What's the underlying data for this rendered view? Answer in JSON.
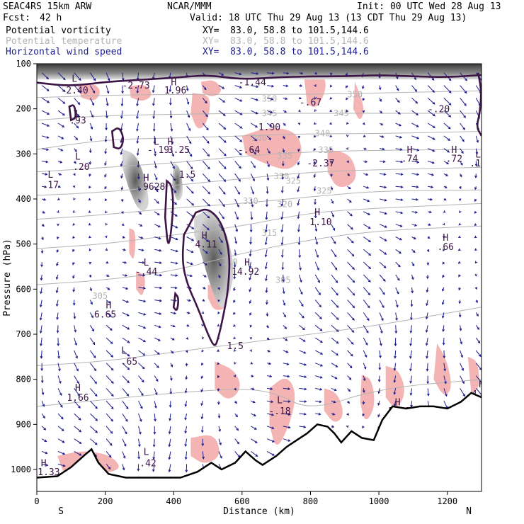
{
  "header": {
    "model": "SEAC4RS 15km ARW",
    "org": "NCAR/MMM",
    "init": "Init: 00 UTC Wed 28 Aug 13",
    "fcst_label": "Fcst:",
    "fcst_value": "42 h",
    "valid": "Valid: 18 UTC Thu 29 Aug 13 (13 CDT Thu 29 Aug 13)",
    "fields": [
      {
        "name": "Potential vorticity",
        "xy": "XY=  83.0, 58.8 to 101.5,144.6",
        "color": "#000000"
      },
      {
        "name": "Potential temperature",
        "xy": "XY=  83.0, 58.8 to 101.5,144.6",
        "color": "#b4b4b4"
      },
      {
        "name": "Horizontal wind speed",
        "xy": "XY=  83.0, 58.8 to 101.5,144.6",
        "color": "#1c1c8c"
      }
    ]
  },
  "colors": {
    "wind": "#1c1c8c",
    "pv_contour": "#3c1446",
    "theta": "#b4b4b4",
    "pink": "#f5b4b4",
    "gray_fill": "#9a9a9a",
    "terrain": "#000000"
  },
  "chart_data": {
    "type": "cross-section",
    "ylabel": "Pressure (hPa)",
    "xlabel": "Distance (km)",
    "x_ticks": [
      0,
      200,
      400,
      600,
      800,
      1000,
      1200
    ],
    "y_ticks": [
      100,
      200,
      300,
      400,
      500,
      600,
      700,
      800,
      900,
      1000
    ],
    "xlim": [
      0,
      1300
    ],
    "ylim_hpa": [
      1050,
      100
    ],
    "end_labels": {
      "left": "S",
      "right": "N"
    },
    "theta_labels": [
      {
        "x": 930,
        "p": 168,
        "t": "350"
      },
      {
        "x": 680,
        "p": 178,
        "t": "350"
      },
      {
        "x": 890,
        "p": 210,
        "t": "345"
      },
      {
        "x": 680,
        "p": 210,
        "t": "345"
      },
      {
        "x": 650,
        "p": 265,
        "t": "340"
      },
      {
        "x": 835,
        "p": 255,
        "t": "340"
      },
      {
        "x": 725,
        "p": 304,
        "t": "335"
      },
      {
        "x": 845,
        "p": 292,
        "t": "335"
      },
      {
        "x": 715,
        "p": 350,
        "t": "330"
      },
      {
        "x": 625,
        "p": 405,
        "t": "330"
      },
      {
        "x": 750,
        "p": 360,
        "t": "325"
      },
      {
        "x": 840,
        "p": 382,
        "t": "325"
      },
      {
        "x": 725,
        "p": 412,
        "t": "320"
      },
      {
        "x": 680,
        "p": 475,
        "t": "315"
      },
      {
        "x": 565,
        "p": 540,
        "t": "310"
      },
      {
        "x": 720,
        "p": 580,
        "t": "305"
      },
      {
        "x": 185,
        "p": 615,
        "t": "305"
      }
    ],
    "extrema_labels": [
      {
        "x": 110,
        "p": 132,
        "t": "L"
      },
      {
        "x": 110,
        "p": 158,
        "t": "-2.40"
      },
      {
        "x": 290,
        "p": 147,
        "t": "-2.73"
      },
      {
        "x": 400,
        "p": 140,
        "t": "H"
      },
      {
        "x": 405,
        "p": 158,
        "t": "1.96"
      },
      {
        "x": 630,
        "p": 140,
        "t": "-1.44"
      },
      {
        "x": 800,
        "p": 185,
        "t": "-.67"
      },
      {
        "x": 1175,
        "p": 200,
        "t": "-.20"
      },
      {
        "x": 120,
        "p": 210,
        "t": "L"
      },
      {
        "x": 120,
        "p": 225,
        "t": ".93"
      },
      {
        "x": 680,
        "p": 240,
        "t": "1.90"
      },
      {
        "x": 620,
        "p": 290,
        "t": "-.64"
      },
      {
        "x": 350,
        "p": 272,
        "t": "L"
      },
      {
        "x": 355,
        "p": 290,
        "t": "-.19"
      },
      {
        "x": 390,
        "p": 272,
        "t": "H"
      },
      {
        "x": 415,
        "p": 290,
        "t": "3.25"
      },
      {
        "x": 120,
        "p": 305,
        "t": "L"
      },
      {
        "x": 130,
        "p": 328,
        "t": ".20"
      },
      {
        "x": 40,
        "p": 345,
        "t": "L"
      },
      {
        "x": 40,
        "p": 368,
        "t": ".17"
      },
      {
        "x": 830,
        "p": 320,
        "t": "-2.37"
      },
      {
        "x": 1090,
        "p": 290,
        "t": "H"
      },
      {
        "x": 1090,
        "p": 310,
        "t": ".74"
      },
      {
        "x": 1220,
        "p": 290,
        "t": "H"
      },
      {
        "x": 1220,
        "p": 310,
        "t": ".72"
      },
      {
        "x": 1290,
        "p": 300,
        "t": "L"
      },
      {
        "x": 1290,
        "p": 320,
        "t": ".17"
      },
      {
        "x": 320,
        "p": 352,
        "t": "H"
      },
      {
        "x": 335,
        "p": 372,
        "t": ".9628"
      },
      {
        "x": 440,
        "p": 345,
        "t": "1.5"
      },
      {
        "x": 820,
        "p": 428,
        "t": "H"
      },
      {
        "x": 830,
        "p": 450,
        "t": "1.10"
      },
      {
        "x": 490,
        "p": 480,
        "t": "H"
      },
      {
        "x": 495,
        "p": 500,
        "t": "4.11"
      },
      {
        "x": 1195,
        "p": 485,
        "t": "H"
      },
      {
        "x": 1195,
        "p": 505,
        "t": ".66"
      },
      {
        "x": 320,
        "p": 540,
        "t": "L"
      },
      {
        "x": 320,
        "p": 560,
        "t": "-.44"
      },
      {
        "x": 615,
        "p": 540,
        "t": "H"
      },
      {
        "x": 610,
        "p": 560,
        "t": "14.92"
      },
      {
        "x": 210,
        "p": 635,
        "t": "H"
      },
      {
        "x": 200,
        "p": 655,
        "t": "6.65"
      },
      {
        "x": 580,
        "p": 725,
        "t": "1.5"
      },
      {
        "x": 255,
        "p": 735,
        "t": "L"
      },
      {
        "x": 270,
        "p": 760,
        "t": ".65"
      },
      {
        "x": 120,
        "p": 818,
        "t": "H"
      },
      {
        "x": 120,
        "p": 840,
        "t": "1.66"
      },
      {
        "x": 710,
        "p": 845,
        "t": "L"
      },
      {
        "x": 710,
        "p": 870,
        "t": "-.18"
      },
      {
        "x": 1055,
        "p": 850,
        "t": "H"
      },
      {
        "x": 1060,
        "p": 870,
        "t": "5.92"
      },
      {
        "x": 1300,
        "p": 810,
        "t": "H"
      },
      {
        "x": 1295,
        "p": 832,
        "t": "4.6"
      },
      {
        "x": 320,
        "p": 960,
        "t": "L"
      },
      {
        "x": 325,
        "p": 985,
        "t": ".42"
      },
      {
        "x": 20,
        "p": 985,
        "t": "H"
      },
      {
        "x": 35,
        "p": 1005,
        "t": "1.33"
      },
      {
        "x": 185,
        "p": 1000,
        "t": "H"
      },
      {
        "x": 185,
        "p": 1025,
        "t": "5.25"
      }
    ],
    "terrain_surface": [
      {
        "x": 0,
        "p": 1018
      },
      {
        "x": 60,
        "p": 1015
      },
      {
        "x": 100,
        "p": 995
      },
      {
        "x": 140,
        "p": 968
      },
      {
        "x": 160,
        "p": 955
      },
      {
        "x": 180,
        "p": 985
      },
      {
        "x": 210,
        "p": 1010
      },
      {
        "x": 260,
        "p": 1018
      },
      {
        "x": 350,
        "p": 1018
      },
      {
        "x": 420,
        "p": 1018
      },
      {
        "x": 470,
        "p": 1005
      },
      {
        "x": 510,
        "p": 985
      },
      {
        "x": 540,
        "p": 1000
      },
      {
        "x": 580,
        "p": 985
      },
      {
        "x": 610,
        "p": 960
      },
      {
        "x": 640,
        "p": 980
      },
      {
        "x": 660,
        "p": 990
      },
      {
        "x": 700,
        "p": 970
      },
      {
        "x": 730,
        "p": 950
      },
      {
        "x": 760,
        "p": 935
      },
      {
        "x": 790,
        "p": 920
      },
      {
        "x": 820,
        "p": 900
      },
      {
        "x": 850,
        "p": 905
      },
      {
        "x": 870,
        "p": 920
      },
      {
        "x": 890,
        "p": 940
      },
      {
        "x": 920,
        "p": 915
      },
      {
        "x": 950,
        "p": 930
      },
      {
        "x": 985,
        "p": 935
      },
      {
        "x": 1010,
        "p": 890
      },
      {
        "x": 1040,
        "p": 860
      },
      {
        "x": 1080,
        "p": 865
      },
      {
        "x": 1120,
        "p": 860
      },
      {
        "x": 1160,
        "p": 860
      },
      {
        "x": 1200,
        "p": 865
      },
      {
        "x": 1240,
        "p": 850
      },
      {
        "x": 1270,
        "p": 830
      },
      {
        "x": 1300,
        "p": 840
      }
    ]
  }
}
